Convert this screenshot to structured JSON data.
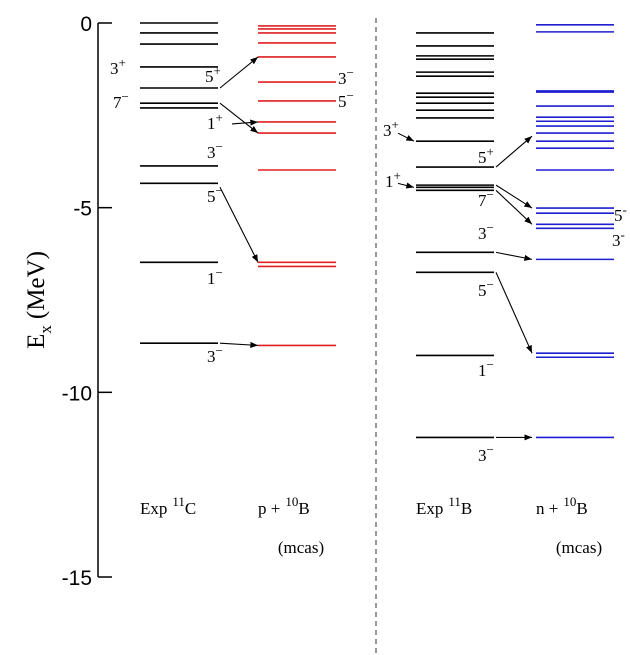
{
  "chart_data": {
    "type": "level-scheme",
    "ylabel": {
      "symbol": "E",
      "sub": "x",
      "unit": "(MeV)"
    },
    "ylim": [
      -15,
      0
    ],
    "yticks": [
      0,
      -5,
      -10,
      -15
    ],
    "note": "(mcas)",
    "columns": [
      {
        "prefix": "Exp",
        "mass": "11",
        "element": "C",
        "color": "#000000",
        "mcas": false,
        "levels": [
          {
            "E": 0
          },
          {
            "E": -0.27
          },
          {
            "E": -0.57
          },
          {
            "E": -1.19,
            "spin": "3",
            "parity": "+"
          },
          {
            "E": -1.76,
            "spin": "5",
            "parity": "+"
          },
          {
            "E": -2.17,
            "spin": "7",
            "parity": "−"
          },
          {
            "E": -2.3,
            "spin": "1",
            "parity": "+"
          },
          {
            "E": -3.87,
            "spin": "3",
            "parity": "−"
          },
          {
            "E": -4.34,
            "spin": "5",
            "parity": "−"
          },
          {
            "E": -6.48,
            "spin": "1",
            "parity": "−"
          },
          {
            "E": -8.67,
            "spin": "3",
            "parity": "−"
          }
        ]
      },
      {
        "prefix": "p +",
        "mass": "10",
        "element": "B",
        "color": "#e02020",
        "mcas": true,
        "levels": [
          {
            "E": -0.08
          },
          {
            "E": -0.16
          },
          {
            "E": -0.27
          },
          {
            "E": -0.54
          },
          {
            "E": -0.92
          },
          {
            "E": -1.6,
            "spin": "3",
            "parity": "−"
          },
          {
            "E": -2.11,
            "spin": "5",
            "parity": "−"
          },
          {
            "E": -2.68
          },
          {
            "E": -2.98
          },
          {
            "E": -3.98
          },
          {
            "E": -6.48
          },
          {
            "E": -6.59
          },
          {
            "E": -8.73
          }
        ]
      },
      {
        "prefix": "Exp",
        "mass": "11",
        "element": "B",
        "color": "#000000",
        "mcas": false,
        "levels": [
          {
            "E": -0.27
          },
          {
            "E": -0.62
          },
          {
            "E": -0.89
          },
          {
            "E": -0.98
          },
          {
            "E": -1.33
          },
          {
            "E": -1.44
          },
          {
            "E": -1.9
          },
          {
            "E": -2.01
          },
          {
            "E": -2.17
          },
          {
            "E": -2.36
          },
          {
            "E": -2.57
          },
          {
            "E": -3.2,
            "spin": "3",
            "parity": "+"
          },
          {
            "E": -3.9,
            "spin": "5",
            "parity": "+"
          },
          {
            "E": -4.39
          },
          {
            "E": -4.45,
            "spin": "1",
            "parity": "+"
          },
          {
            "E": -4.53,
            "spin": "7",
            "parity": "−"
          },
          {
            "E": -6.21,
            "spin": "3",
            "parity": "−"
          },
          {
            "E": -6.75,
            "spin": "5",
            "parity": "−"
          },
          {
            "E": -9.0,
            "spin": "1",
            "parity": "−"
          },
          {
            "E": -11.22,
            "spin": "3",
            "parity": "−"
          }
        ]
      },
      {
        "prefix": "n +",
        "mass": "10",
        "element": "B",
        "color": "#1f1fd0",
        "mcas": true,
        "levels": [
          {
            "E": -0.05
          },
          {
            "E": -0.24
          },
          {
            "E": -1.84
          },
          {
            "E": -1.87
          },
          {
            "E": -2.25
          },
          {
            "E": -2.55
          },
          {
            "E": -2.66
          },
          {
            "E": -2.79
          },
          {
            "E": -2.98
          },
          {
            "E": -3.2
          },
          {
            "E": -3.39
          },
          {
            "E": -3.98
          },
          {
            "E": -5.01
          },
          {
            "E": -5.15,
            "spin": "5",
            "parity": "-"
          },
          {
            "E": -5.45
          },
          {
            "E": -5.56,
            "spin": "3",
            "parity": "-"
          },
          {
            "E": -6.4
          },
          {
            "E": -8.94
          },
          {
            "E": -9.05
          },
          {
            "E": -11.22
          }
        ]
      }
    ]
  }
}
